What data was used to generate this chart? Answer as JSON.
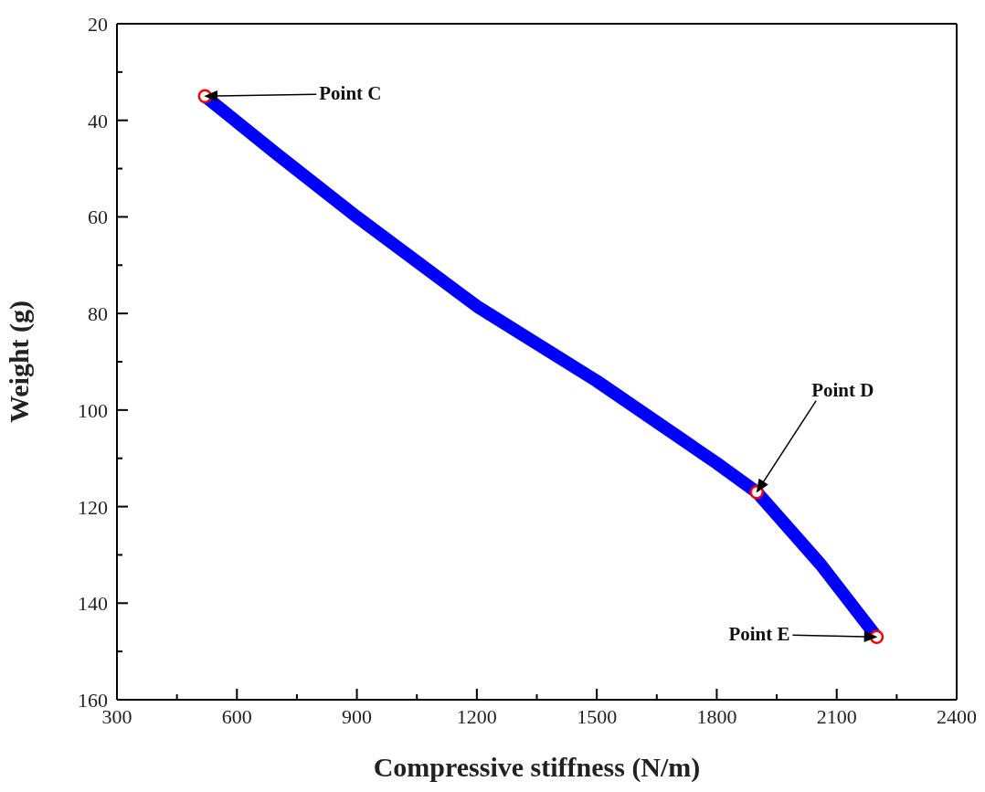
{
  "chart_data": {
    "type": "line",
    "xlabel": "Compressive stiffness (N/m)",
    "ylabel": "Weight (g)",
    "xlim": [
      300,
      2400
    ],
    "xticks": [
      300,
      {
        "value": 450,
        "label": null
      },
      600,
      {
        "value": 750,
        "label": null
      },
      900,
      {
        "value": 1050,
        "label": null
      },
      1200,
      {
        "value": 1350,
        "label": null
      },
      1500,
      {
        "value": 1650,
        "label": null
      },
      1800,
      {
        "value": 1950,
        "label": null
      },
      2100,
      {
        "value": 2250,
        "label": null
      },
      2400
    ],
    "ylim": [
      160,
      20
    ],
    "yticks": [
      20,
      {
        "value": 30,
        "label": null
      },
      40,
      {
        "value": 50,
        "label": null
      },
      60,
      {
        "value": 70,
        "label": null
      },
      80,
      {
        "value": 90,
        "label": null
      },
      100,
      {
        "value": 110,
        "label": null
      },
      120,
      {
        "value": 130,
        "label": null
      },
      140,
      {
        "value": 150,
        "label": null
      },
      160
    ],
    "legend": false,
    "series": [
      {
        "color": "#0000ff",
        "x": [
          520,
          700,
          900,
          1200,
          1500,
          1800,
          1900,
          2060,
          2200
        ],
        "values": [
          35,
          47,
          60,
          78.5,
          94,
          111,
          117,
          132,
          147
        ]
      },
      {
        "type": "scatter",
        "color": "#ff0000",
        "marker": "circle",
        "x": [
          520,
          1900,
          2200
        ],
        "values": [
          35,
          117,
          147
        ]
      }
    ],
    "annotations": [
      "Point C",
      "Point D",
      "Point E"
    ]
  }
}
